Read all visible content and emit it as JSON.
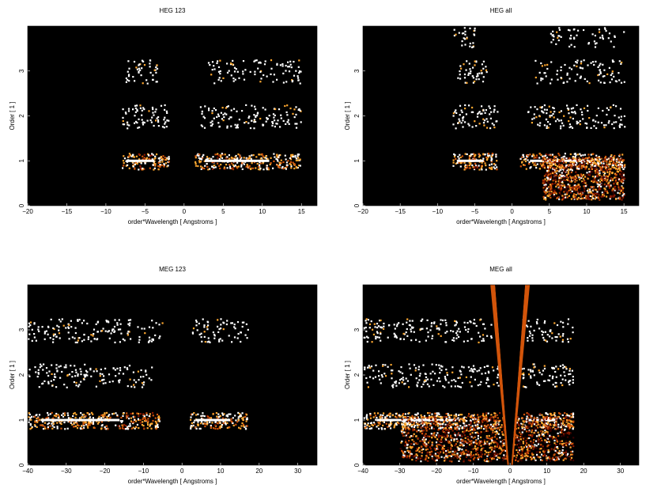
{
  "chart_data": [
    {
      "type": "heatmap",
      "title": "HEG 123",
      "xlabel": "order*Wavelength [ Angstroms ]",
      "ylabel": "Order [ 1 ]",
      "xlim": [
        -20,
        17
      ],
      "ylim": [
        0,
        4
      ],
      "xticks": [
        -20,
        -15,
        -10,
        -5,
        0,
        5,
        10,
        15
      ],
      "yticks": [
        0,
        1,
        2,
        3
      ],
      "background": "#000000",
      "colormap": [
        "#3a0000",
        "#8b1a00",
        "#d2540a",
        "#ffa830",
        "#ffffff"
      ],
      "bands": [
        {
          "order": 1,
          "x_range": [
            -8,
            -2
          ],
          "peak": -5,
          "intensity": 0.9
        },
        {
          "order": 1,
          "x_range": [
            1.3,
            15
          ],
          "peak": 5,
          "intensity": 0.9
        },
        {
          "order": 2,
          "x_range": [
            -8,
            -2
          ],
          "peak": -4,
          "intensity": 0.4
        },
        {
          "order": 2,
          "x_range": [
            2,
            15
          ],
          "peak": 4,
          "intensity": 0.4
        },
        {
          "order": 3,
          "x_range": [
            -7.5,
            -3.5
          ],
          "peak": -5,
          "intensity": 0.3
        },
        {
          "order": 3,
          "x_range": [
            3,
            15
          ],
          "peak": 5,
          "intensity": 0.3
        }
      ]
    },
    {
      "type": "heatmap",
      "title": "HEG all",
      "xlabel": "order*Wavelength [ Angstroms ]",
      "ylabel": "Order [ 1 ]",
      "xlim": [
        -20,
        17
      ],
      "ylim": [
        0,
        4
      ],
      "xticks": [
        -20,
        -15,
        -10,
        -5,
        0,
        5,
        10,
        15
      ],
      "yticks": [
        0,
        1,
        2,
        3
      ],
      "background": "#000000",
      "colormap": [
        "#3a0000",
        "#8b1a00",
        "#d2540a",
        "#ffa830",
        "#ffffff"
      ],
      "bands": [
        {
          "order": 1,
          "x_range": [
            -8,
            -2
          ],
          "peak": -5,
          "intensity": 0.9
        },
        {
          "order": 1,
          "x_range": [
            1,
            15
          ],
          "peak": 5,
          "intensity": 0.9
        },
        {
          "order": 2,
          "x_range": [
            -8,
            -2
          ],
          "peak": -4,
          "intensity": 0.4
        },
        {
          "order": 2,
          "x_range": [
            2,
            15
          ],
          "peak": 4,
          "intensity": 0.4
        },
        {
          "order": 3,
          "x_range": [
            -7.5,
            -3.5
          ],
          "peak": -5,
          "intensity": 0.3
        },
        {
          "order": 3,
          "x_range": [
            3,
            15
          ],
          "peak": 5,
          "intensity": 0.3
        },
        {
          "order": 3.8,
          "x_range": [
            -8,
            -5
          ],
          "peak": -6,
          "intensity": 0.2
        },
        {
          "order": 3.8,
          "x_range": [
            5,
            15
          ],
          "peak": 10,
          "intensity": 0.2
        }
      ],
      "extra_region": {
        "x_range": [
          4,
          15
        ],
        "y_range": [
          0.15,
          1.1
        ],
        "intensity": 0.6
      }
    },
    {
      "type": "heatmap",
      "title": "MEG 123",
      "xlabel": "order*Wavelength [ Angstroms ]",
      "ylabel": "Order [ 1 ]",
      "xlim": [
        -40,
        35
      ],
      "ylim": [
        0,
        4
      ],
      "xticks": [
        -40,
        -30,
        -20,
        -10,
        0,
        10,
        20,
        30
      ],
      "yticks": [
        0,
        1,
        2,
        3
      ],
      "background": "#000000",
      "colormap": [
        "#3a0000",
        "#8b1a00",
        "#d2540a",
        "#ffa830",
        "#ffffff"
      ],
      "bands": [
        {
          "order": 1,
          "x_range": [
            -40,
            -6
          ],
          "peak": -12,
          "intensity": 0.9
        },
        {
          "order": 1,
          "x_range": [
            2,
            17
          ],
          "peak": 8,
          "intensity": 0.9
        },
        {
          "order": 2,
          "x_range": [
            -40,
            -8
          ],
          "peak": -25,
          "intensity": 0.35
        },
        {
          "order": 3,
          "x_range": [
            -40,
            -5
          ],
          "peak": -25,
          "intensity": 0.35
        },
        {
          "order": 3,
          "x_range": [
            2,
            17
          ],
          "peak": 8,
          "intensity": 0.3
        }
      ]
    },
    {
      "type": "heatmap",
      "title": "MEG all",
      "xlabel": "order*Wavelength [ Angstroms ]",
      "ylabel": "Order [ 1 ]",
      "xlim": [
        -40,
        35
      ],
      "ylim": [
        0,
        4
      ],
      "xticks": [
        -40,
        -30,
        -20,
        -10,
        0,
        10,
        20,
        30
      ],
      "yticks": [
        0,
        1,
        2,
        3
      ],
      "background": "#000000",
      "colormap": [
        "#3a0000",
        "#8b1a00",
        "#d2540a",
        "#ffa830",
        "#ffffff"
      ],
      "bands": [
        {
          "order": 1,
          "x_range": [
            -40,
            -3
          ],
          "peak": -7,
          "intensity": 0.95
        },
        {
          "order": 1,
          "x_range": [
            3,
            17
          ],
          "peak": 6,
          "intensity": 0.95
        },
        {
          "order": 2,
          "x_range": [
            -40,
            -3
          ],
          "peak": -25,
          "intensity": 0.4
        },
        {
          "order": 2,
          "x_range": [
            3,
            17
          ],
          "peak": 8,
          "intensity": 0.4
        },
        {
          "order": 3,
          "x_range": [
            -40,
            -5
          ],
          "peak": -25,
          "intensity": 0.4
        },
        {
          "order": 3,
          "x_range": [
            3,
            17
          ],
          "peak": 8,
          "intensity": 0.3
        }
      ],
      "v_wedge": {
        "center": 0,
        "half_width_top": 4.5,
        "half_width_bottom": 0.3
      },
      "fan_region": {
        "x_range": [
          -30,
          17
        ],
        "y_range": [
          0,
          1
        ],
        "intensity": 0.5
      }
    }
  ]
}
